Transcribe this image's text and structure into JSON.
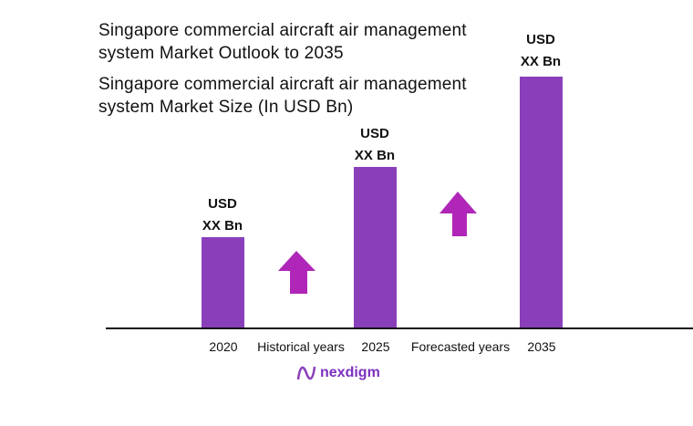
{
  "chart_data": {
    "type": "bar",
    "title": "Singapore commercial aircraft air management system Market Outlook to 2035",
    "subtitle": "Singapore commercial aircraft air management system Market Size (In USD Bn)",
    "categories": [
      "2020",
      "2025",
      "2035"
    ],
    "values_relative": [
      1.0,
      1.77,
      2.76
    ],
    "data_labels": [
      [
        "USD",
        "XX Bn"
      ],
      [
        "USD",
        "XX Bn"
      ],
      [
        "USD",
        "XX Bn"
      ]
    ],
    "period_labels": [
      "Historical years",
      "Forecasted years"
    ],
    "bar_color": "#8a3fba",
    "arrow_color": "#b026b8",
    "grid": false
  },
  "logo": {
    "text": "nexdigm"
  }
}
